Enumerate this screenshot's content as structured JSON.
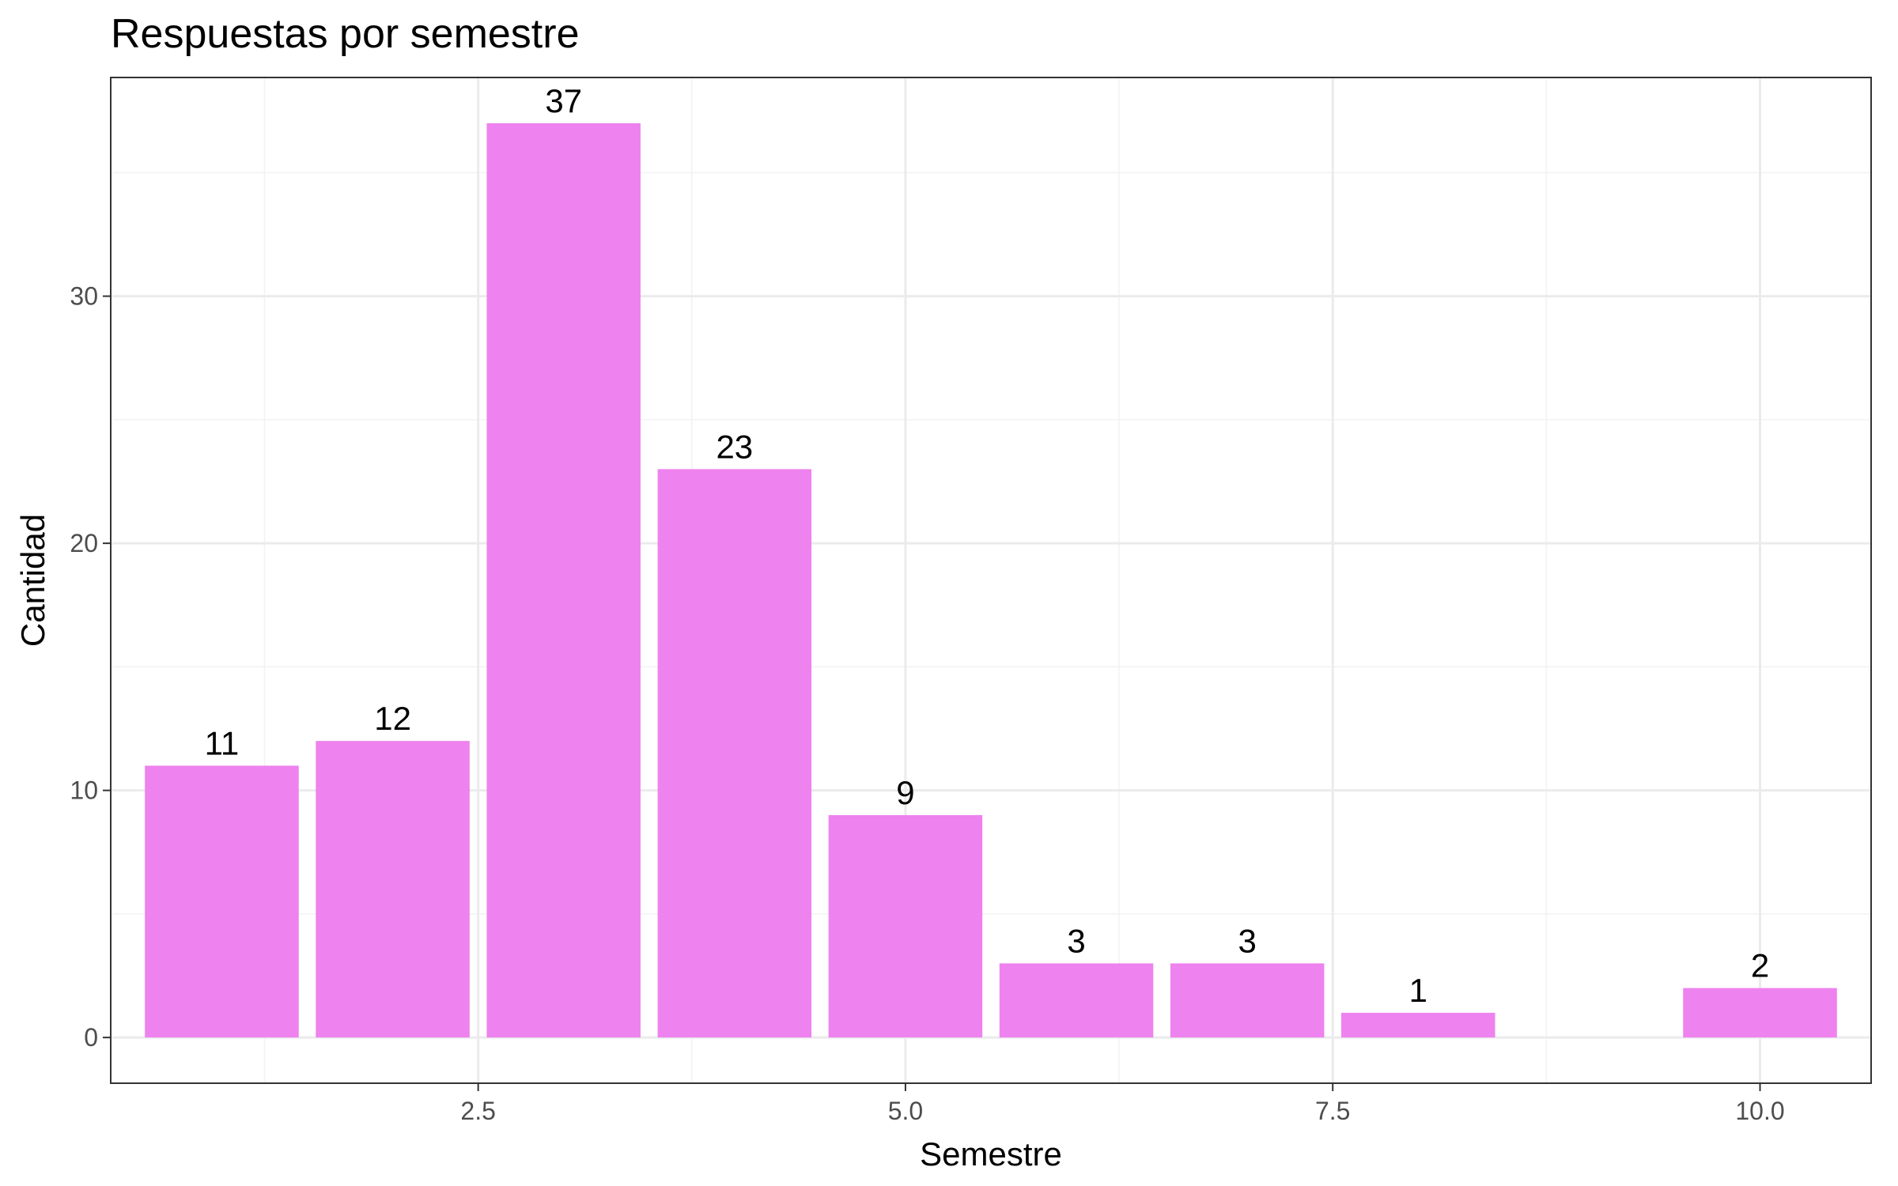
{
  "chart_data": {
    "type": "bar",
    "title": "Respuestas por semestre",
    "xlabel": "Semestre",
    "ylabel": "Cantidad",
    "x": [
      1,
      2,
      3,
      4,
      5,
      6,
      7,
      8,
      10
    ],
    "values": [
      11,
      12,
      37,
      23,
      9,
      3,
      3,
      1,
      2
    ],
    "xlim": [
      0.35,
      10.65
    ],
    "ylim": [
      -1.85,
      38.85
    ],
    "xticks": [
      2.5,
      5.0,
      7.5,
      10.0
    ],
    "xtick_labels": [
      "2.5",
      "5.0",
      "7.5",
      "10.0"
    ],
    "yticks": [
      0,
      10,
      20,
      30
    ],
    "ytick_labels": [
      "0",
      "10",
      "20",
      "30"
    ],
    "bar_color": "#EE82EE",
    "grid": true,
    "legend": "none"
  }
}
